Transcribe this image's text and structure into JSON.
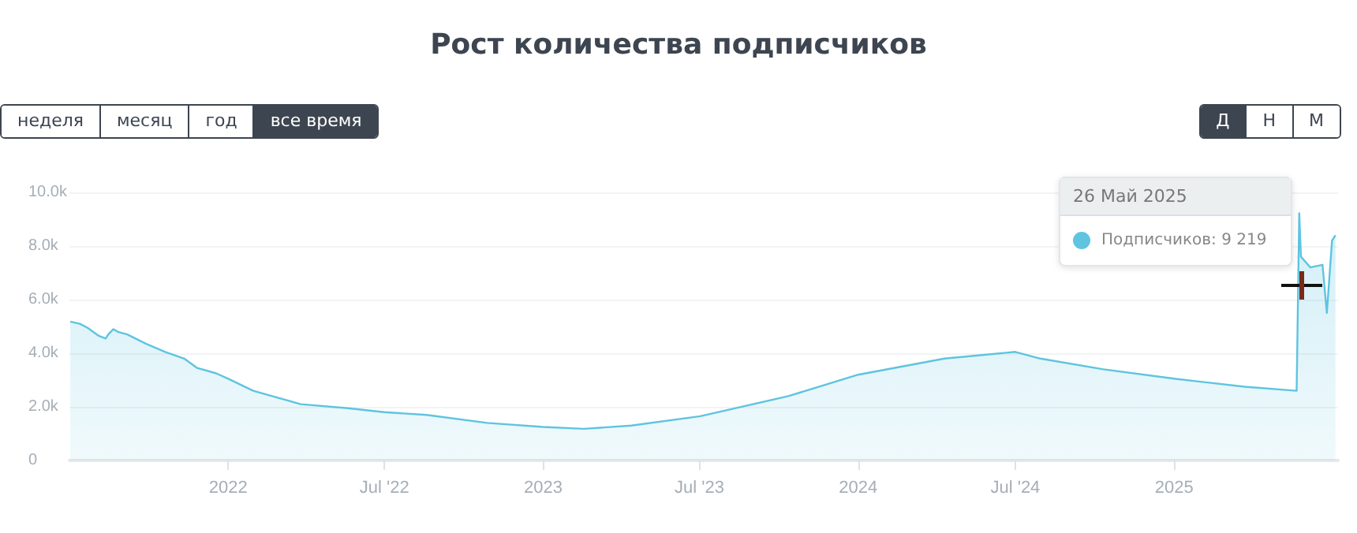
{
  "chart_data": {
    "type": "area",
    "title": "Рост количества подписчиков",
    "x": [
      "2021-07-02",
      "2021-07-13",
      "2021-07-22",
      "2021-08-04",
      "2021-08-12",
      "2021-08-15",
      "2021-08-21",
      "2021-08-26",
      "2021-09-06",
      "2021-09-28",
      "2021-10-20",
      "2021-11-11",
      "2021-11-26",
      "2021-12-18",
      "2022-01-01",
      "2022-01-30",
      "2022-03-26",
      "2022-05-20",
      "2022-07-01",
      "2022-08-19",
      "2022-10-28",
      "2023-01-01",
      "2023-02-17",
      "2023-04-13",
      "2023-07-02",
      "2023-10-12",
      "2024-01-01",
      "2024-04-10",
      "2024-07-01",
      "2024-07-30",
      "2024-10-11",
      "2025-01-01",
      "2025-03-24",
      "2025-05-23",
      "2025-05-26",
      "2025-05-28",
      "2025-06-08",
      "2025-06-22",
      "2025-06-27",
      "2025-07-03",
      "2025-07-07"
    ],
    "series": [
      {
        "color": "#5ec4e0",
        "values": [
          5180,
          5100,
          4950,
          4650,
          4550,
          4700,
          4900,
          4800,
          4700,
          4350,
          4050,
          3800,
          3450,
          3250,
          3050,
          2600,
          2100,
          1950,
          1800,
          1700,
          1400,
          1250,
          1180,
          1300,
          1650,
          2400,
          3200,
          3800,
          4050,
          3800,
          3400,
          3050,
          2750,
          2600,
          9219,
          7600,
          7200,
          7300,
          5500,
          8200,
          8400
        ]
      }
    ],
    "xlim": [
      "2021-07-01",
      "2025-07-10"
    ],
    "xticks": [
      {
        "value": "2022-01-01",
        "label": "2022"
      },
      {
        "value": "2022-07-01",
        "label": "Jul '22"
      },
      {
        "value": "2023-01-01",
        "label": "2023"
      },
      {
        "value": "2023-07-01",
        "label": "Jul '23"
      },
      {
        "value": "2024-01-01",
        "label": "2024"
      },
      {
        "value": "2024-07-01",
        "label": "Jul '24"
      },
      {
        "value": "2025-01-01",
        "label": "2025"
      }
    ],
    "ylim": [
      0,
      10000
    ],
    "yticks": [
      0,
      {
        "value": 2000,
        "label": "2.0k"
      },
      {
        "value": 4000,
        "label": "4.0k"
      },
      {
        "value": 6000,
        "label": "6.0k"
      },
      {
        "value": 8000,
        "label": "8.0k"
      },
      {
        "value": 10000,
        "label": "10.0k"
      }
    ],
    "grid": "y",
    "marker": "none",
    "annotations": [
      "26 Май 2025",
      "Подписчиков: 9 219",
      "неделя",
      "месяц",
      "год",
      "все время",
      "Д",
      "Н",
      "М"
    ]
  }
}
